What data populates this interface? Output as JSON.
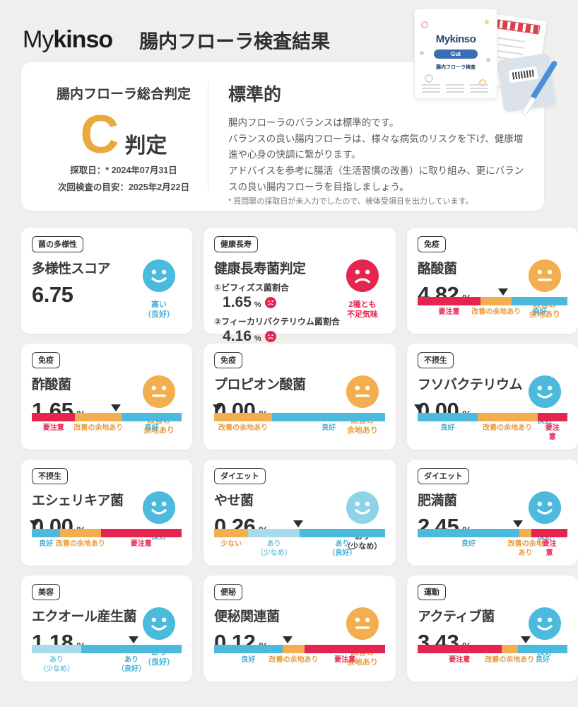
{
  "header": {
    "logo_light": "My",
    "logo_bold": "kinso",
    "title": "腸内フローラ検査結果",
    "kit": {
      "brand": "Mykinso",
      "button": "Gut",
      "caption": "腸内フローラ検査"
    }
  },
  "summary": {
    "heading": "腸内フローラ総合判定",
    "grade": "C",
    "grade_suffix": "判定",
    "sample_date": "採取日：* 2024年07月31日",
    "next_test": "次回検査の目安：2025年2月22日",
    "result_title": "標準的",
    "description": "腸内フローラのバランスは標準的です。\nバランスの良い腸内フローラは、様々な病気のリスクを下げ、健康増進や心身の快調に繋がります。\nアドバイスを参考に腸活（生活習慣の改善）に取り組み、更にバランスの良い腸内フローラを目指しましょう。",
    "footnote": "* 質問票の採取日が未入力でしたので、検体受領日を出力しています。"
  },
  "palette": {
    "blue": "#4CBADC",
    "light_blue": "#A7DAEA",
    "light_blue_face": "#8FD3E8",
    "orange": "#F2AE4F",
    "orange_text": "#E89C3F",
    "red": "#E5244F",
    "blue_text": "#45B0D4",
    "light_blue_text": "#74C6DF",
    "grade_orange": "#E9A93C",
    "dark_text": "#3A3A3A"
  },
  "cards": [
    {
      "tag": "菌の多様性",
      "title": "多様性スコア",
      "value": "6.75",
      "unit": "",
      "face": {
        "type": "happy",
        "color": "#4CBADC"
      },
      "status": "高い\n（良好）",
      "status_color": "#45B0D4",
      "bar": null
    },
    {
      "tag": "健康長寿",
      "title": "健康長寿菌判定",
      "value": "",
      "unit": "",
      "face": {
        "type": "sad",
        "color": "#E5244F"
      },
      "status": "2種とも\n不足気味",
      "status_color": "#E5244F",
      "items": [
        {
          "label": "①ビフィズス菌割合",
          "value": "1.65",
          "unit": "%"
        },
        {
          "label": "②フィーカリバクテリウム菌割合",
          "value": "4.16",
          "unit": "%"
        }
      ],
      "bar": null
    },
    {
      "tag": "免疫",
      "title": "酪酸菌",
      "value": "4.82",
      "unit": "%",
      "face": {
        "type": "neutral",
        "color": "#F2AE4F"
      },
      "status": "改善の\n余地あり",
      "status_color": "#E89C3F",
      "bar": {
        "marker": 57,
        "segments": [
          {
            "label": "要注意",
            "width": 42,
            "color": "#E5244F",
            "label_color": "#E5244F"
          },
          {
            "label": "改善の余地あり",
            "width": 21,
            "color": "#F2AE4F",
            "label_color": "#E89C3F"
          },
          {
            "label": "良好",
            "width": 37,
            "color": "#4CBADC",
            "label_color": "#45B0D4"
          }
        ]
      }
    },
    {
      "tag": "免疫",
      "title": "酢酸菌",
      "value": "1.65",
      "unit": "%",
      "face": {
        "type": "neutral",
        "color": "#F2AE4F"
      },
      "status": "改善の\n余地あり",
      "status_color": "#E89C3F",
      "bar": {
        "marker": 56,
        "segments": [
          {
            "label": "要注意",
            "width": 29,
            "color": "#E5244F",
            "label_color": "#E5244F"
          },
          {
            "label": "改善の余地あり",
            "width": 31,
            "color": "#F2AE4F",
            "label_color": "#E89C3F"
          },
          {
            "label": "良好",
            "width": 40,
            "color": "#4CBADC",
            "label_color": "#45B0D4"
          }
        ]
      }
    },
    {
      "tag": "免疫",
      "title": "プロピオン酸菌",
      "value": "0.00",
      "unit": "%",
      "face": {
        "type": "neutral",
        "color": "#F2AE4F"
      },
      "status": "改善の\n余地あり",
      "status_color": "#E89C3F",
      "bar": {
        "marker": 2,
        "segments": [
          {
            "label": "改善の余地あり",
            "width": 34,
            "color": "#F2AE4F",
            "label_color": "#E89C3F"
          },
          {
            "label": "良好",
            "width": 66,
            "color": "#4CBADC",
            "label_color": "#45B0D4"
          }
        ]
      }
    },
    {
      "tag": "不摂生",
      "title": "フソバクテリウム",
      "value": "0.00",
      "unit": "%",
      "face": {
        "type": "happy",
        "color": "#4CBADC"
      },
      "status": "良好",
      "status_color": "#45B0D4",
      "bar": {
        "marker": 1,
        "segments": [
          {
            "label": "良好",
            "width": 40,
            "color": "#4CBADC",
            "label_color": "#45B0D4"
          },
          {
            "label": "改善の余地あり",
            "width": 40,
            "color": "#F2AE4F",
            "label_color": "#E89C3F"
          },
          {
            "label": "要注意",
            "width": 20,
            "color": "#E5244F",
            "label_color": "#E5244F"
          }
        ]
      }
    },
    {
      "tag": "不摂生",
      "title": "エシェリキア菌",
      "value": "0.00",
      "unit": "%",
      "face": {
        "type": "happy",
        "color": "#4CBADC"
      },
      "status": "良好",
      "status_color": "#45B0D4",
      "bar": {
        "marker": 2,
        "segments": [
          {
            "label": "良好",
            "width": 19,
            "color": "#4CBADC",
            "label_color": "#45B0D4"
          },
          {
            "label": "改善の余地あり",
            "width": 27,
            "color": "#F2AE4F",
            "label_color": "#E89C3F"
          },
          {
            "label": "要注意",
            "width": 54,
            "color": "#E5244F",
            "label_color": "#E5244F"
          }
        ]
      }
    },
    {
      "tag": "ダイエット",
      "title": "やせ菌",
      "value": "0.26",
      "unit": "%",
      "face": {
        "type": "happy",
        "color": "#8FD3E8"
      },
      "status": "あり\n（少なめ）",
      "status_color": "#3A3A3A",
      "bar": {
        "marker": 49,
        "segments": [
          {
            "label": "少ない",
            "width": 20,
            "color": "#F2AE4F",
            "label_color": "#E89C3F"
          },
          {
            "label": "あり\n（少なめ）",
            "width": 30,
            "color": "#A7DAEA",
            "label_color": "#74C6DF"
          },
          {
            "label": "あり\n（良好）",
            "width": 50,
            "color": "#4CBADC",
            "label_color": "#45B0D4"
          }
        ]
      }
    },
    {
      "tag": "ダイエット",
      "title": "肥満菌",
      "value": "2.45",
      "unit": "%",
      "face": {
        "type": "happy",
        "color": "#4CBADC"
      },
      "status": "良好",
      "status_color": "#45B0D4",
      "bar": {
        "marker": 67,
        "segments": [
          {
            "label": "良好",
            "width": 68,
            "color": "#4CBADC",
            "label_color": "#45B0D4"
          },
          {
            "label": "改善の余地あり",
            "width": 8,
            "color": "#F2AE4F",
            "label_color": "#E89C3F"
          },
          {
            "label": "要注意",
            "width": 24,
            "color": "#E5244F",
            "label_color": "#E5244F"
          }
        ]
      }
    },
    {
      "tag": "美容",
      "title": "エクオール産生菌",
      "value": "1.18",
      "unit": "%",
      "face": {
        "type": "happy",
        "color": "#4CBADC"
      },
      "status": "あり\n（良好）",
      "status_color": "#45B0D4",
      "bar": {
        "marker": 68,
        "segments": [
          {
            "label": "あり\n（少なめ）",
            "width": 33,
            "color": "#A7DAEA",
            "label_color": "#74C6DF"
          },
          {
            "label": "あり\n（良好）",
            "width": 67,
            "color": "#4CBADC",
            "label_color": "#45B0D4"
          }
        ]
      }
    },
    {
      "tag": "便秘",
      "title": "便秘関連菌",
      "value": "0.12",
      "unit": "%",
      "face": {
        "type": "neutral",
        "color": "#F2AE4F"
      },
      "status": "改善の\n余地あり",
      "status_color": "#E89C3F",
      "bar": {
        "marker": 43,
        "segments": [
          {
            "label": "良好",
            "width": 40,
            "color": "#4CBADC",
            "label_color": "#45B0D4"
          },
          {
            "label": "改善の余地あり",
            "width": 13,
            "color": "#F2AE4F",
            "label_color": "#E89C3F"
          },
          {
            "label": "要注意",
            "width": 47,
            "color": "#E5244F",
            "label_color": "#E5244F"
          }
        ]
      }
    },
    {
      "tag": "運動",
      "title": "アクティブ菌",
      "value": "3.43",
      "unit": "%",
      "face": {
        "type": "happy",
        "color": "#4CBADC"
      },
      "status": "良好",
      "status_color": "#45B0D4",
      "bar": {
        "marker": 72,
        "segments": [
          {
            "label": "要注意",
            "width": 56,
            "color": "#E5244F",
            "label_color": "#E5244F"
          },
          {
            "label": "改善の余地あり",
            "width": 11,
            "color": "#F2AE4F",
            "label_color": "#E89C3F"
          },
          {
            "label": "良好",
            "width": 33,
            "color": "#4CBADC",
            "label_color": "#45B0D4"
          }
        ]
      }
    }
  ]
}
